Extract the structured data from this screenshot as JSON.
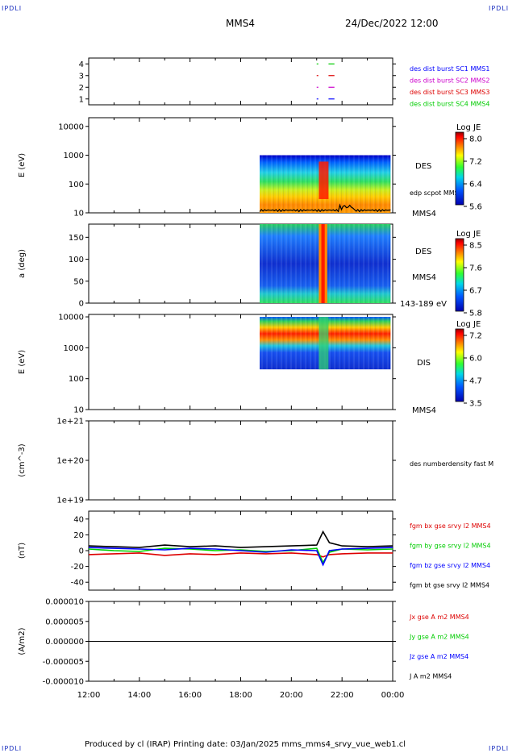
{
  "corners": {
    "tl": "IPDLI",
    "tr": "IPDLI",
    "bl": "IPDLI",
    "br": "IPDLI"
  },
  "header": {
    "spacecraft": "MMS4",
    "datetime": "24/Dec/2022 12:00"
  },
  "footer": {
    "text": "Produced by cl (IRAP)   Printing date: 03/Jan/2025   mms_mms4_srvy_vue_web1.cl"
  },
  "colors": {
    "mms1": "#0000ff",
    "mms2": "#cc00cc",
    "mms3": "#dd0000",
    "mms4": "#00cc00",
    "black": "#000000"
  },
  "chart_data": [
    {
      "id": "availability",
      "type": "scatter",
      "ylim": [
        0.5,
        4.5
      ],
      "yticks": [
        "1",
        "2",
        "3",
        "4"
      ],
      "xlim": [
        "12:00",
        "00:00"
      ],
      "series": [
        {
          "name": "des dist burst SC1 MMS1",
          "color": "#0000ff",
          "y": 1,
          "segments": [
            [
              "21:00",
              "21:02"
            ],
            [
              "21:28",
              "21:42"
            ]
          ]
        },
        {
          "name": "des dist burst SC2 MMS2",
          "color": "#cc00cc",
          "y": 2,
          "segments": [
            [
              "21:00",
              "21:02"
            ],
            [
              "21:28",
              "21:42"
            ]
          ]
        },
        {
          "name": "des dist burst SC3 MMS3",
          "color": "#dd0000",
          "y": 3,
          "segments": [
            [
              "21:00",
              "21:02"
            ],
            [
              "21:28",
              "21:42"
            ]
          ]
        },
        {
          "name": "des dist burst SC4 MMS4",
          "color": "#00cc00",
          "y": 4,
          "segments": [
            [
              "21:00",
              "21:02"
            ],
            [
              "21:28",
              "21:42"
            ]
          ]
        }
      ]
    },
    {
      "id": "des-energy",
      "type": "heatmap",
      "scale": "log",
      "ylabel": "E (eV)",
      "ylim": [
        10,
        20000
      ],
      "yticks": [
        "10",
        "100",
        "1000",
        "10000"
      ],
      "label": "DES",
      "sublabel": "edp scpot MMS4",
      "right_bottom": "MMS4",
      "colorbar": {
        "title": "Log JE",
        "ticks": [
          "8.0",
          "7.2",
          "6.4",
          "5.6"
        ]
      },
      "data_start": "18:45",
      "data_end": "23:55"
    },
    {
      "id": "des-pitch",
      "type": "heatmap",
      "ylabel": "a (deg)",
      "ylim": [
        0,
        180
      ],
      "yticks": [
        "0",
        "50",
        "100",
        "150"
      ],
      "label": "DES",
      "sublabel": "MMS4",
      "right_bottom": "143-189 eV",
      "colorbar": {
        "title": "Log JE",
        "ticks": [
          "8.5",
          "7.6",
          "6.7",
          "5.8"
        ]
      },
      "data_start": "18:45",
      "data_end": "23:55"
    },
    {
      "id": "dis-energy",
      "type": "heatmap",
      "scale": "log",
      "ylabel": "E (eV)",
      "ylim": [
        10,
        12000
      ],
      "yticks": [
        "10",
        "100",
        "1000",
        "10000"
      ],
      "label": "DIS",
      "right_bottom": "MMS4",
      "colorbar": {
        "title": "Log JE",
        "ticks": [
          "7.2",
          "6.0",
          "4.7",
          "3.5"
        ]
      },
      "data_start": "18:45",
      "data_end": "23:55"
    },
    {
      "id": "density",
      "type": "line",
      "scale": "log",
      "ylabel": "(cm^-3)",
      "ylim": [
        1e+19,
        1e+21
      ],
      "yticks": [
        "1e+19",
        "1e+20",
        "1e+21"
      ],
      "series": [
        {
          "name": "des numberdensity fast M",
          "color": "#000000",
          "points": []
        }
      ]
    },
    {
      "id": "fgm",
      "type": "line",
      "ylabel": "(nT)",
      "ylim": [
        -50,
        50
      ],
      "yticks": [
        "40",
        "20",
        "0",
        "-20",
        "-40"
      ],
      "x": [
        "12:00",
        "13:00",
        "14:00",
        "15:00",
        "16:00",
        "17:00",
        "18:00",
        "19:00",
        "20:00",
        "21:00",
        "21:15",
        "21:30",
        "22:00",
        "23:00",
        "00:00"
      ],
      "series": [
        {
          "name": "fgm bx gse srvy l2 MMS4",
          "color": "#dd0000",
          "values": [
            -5,
            -4,
            -3,
            -6,
            -4,
            -5,
            -3,
            -4,
            -3,
            -5,
            -8,
            -5,
            -4,
            -3,
            -3
          ]
        },
        {
          "name": "fgm by gse srvy l2 MMS4",
          "color": "#00cc00",
          "values": [
            2,
            0,
            -1,
            3,
            2,
            0,
            1,
            -1,
            0,
            3,
            -15,
            -2,
            2,
            1,
            2
          ]
        },
        {
          "name": "fgm bz gse srvy l2 MMS4",
          "color": "#0000ff",
          "values": [
            4,
            3,
            2,
            1,
            3,
            2,
            0,
            -2,
            1,
            0,
            -18,
            0,
            2,
            3,
            4
          ]
        },
        {
          "name": "fgm bt gse srvy l2 MMS4",
          "color": "#000000",
          "values": [
            6,
            5,
            4,
            7,
            5,
            6,
            4,
            5,
            6,
            7,
            24,
            10,
            6,
            5,
            6
          ]
        }
      ]
    },
    {
      "id": "current",
      "type": "line",
      "ylabel": "(A/m2)",
      "ylim": [
        -1e-05,
        1e-05
      ],
      "yticks": [
        "0.000010",
        "0.000005",
        "0.000000",
        "-0.000005",
        "-0.000010"
      ],
      "xticks": [
        "12:00",
        "14:00",
        "16:00",
        "18:00",
        "20:00",
        "22:00",
        "00:00"
      ],
      "series": [
        {
          "name": "Jx gse A m2 MMS4",
          "color": "#dd0000",
          "values": [
            0,
            0,
            0,
            0,
            0,
            0,
            0
          ]
        },
        {
          "name": "Jy gse A m2 MMS4",
          "color": "#00cc00",
          "values": [
            0,
            0,
            0,
            0,
            0,
            0,
            0
          ]
        },
        {
          "name": "Jz gse A m2 MMS4",
          "color": "#0000ff",
          "values": [
            0,
            0,
            0,
            0,
            0,
            0,
            0
          ]
        },
        {
          "name": "J A m2 MMS4",
          "color": "#000000",
          "values": [
            0,
            0,
            0,
            0,
            0,
            0,
            0
          ]
        }
      ]
    }
  ]
}
